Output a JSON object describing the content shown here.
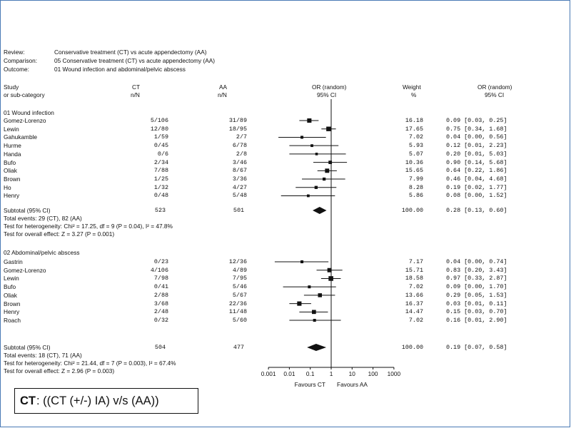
{
  "header": {
    "review_label": "Review:",
    "review_value": "Conservative treatment (CT) vs acute appendectomy (AA)",
    "comparison_label": "Comparison:",
    "comparison_value": "05 Conservative treatment (CT) vs acute appendectomy (AA)",
    "outcome_label": "Outcome:",
    "outcome_value": "01 Wound infection and abdominal/pelvic abscess"
  },
  "columns": {
    "study": "Study",
    "study2": "or sub-category",
    "ct": "CT",
    "ct2": "n/N",
    "aa": "AA",
    "aa2": "n/N",
    "or": "OR (random)",
    "or2": "95% CI",
    "weight": "Weight",
    "weight2": "%",
    "or_right": "OR (random)",
    "or_right2": "95% CI"
  },
  "chart_data": {
    "type": "forest",
    "x_scale": "log",
    "xlim": [
      0.001,
      1000
    ],
    "ticks": [
      "0.001",
      "0.01",
      "0.1",
      "1",
      "10",
      "100",
      "1000"
    ],
    "favours_left": "Favours CT",
    "favours_right": "Favours AA",
    "groups": [
      {
        "title": "01 Wound infection",
        "studies": [
          {
            "name": "Gomez-Lorenzo",
            "ct": "5/106",
            "aa": "31/89",
            "weight": "16.18",
            "ci_text": "0.09 [0.03, 0.25]",
            "or": 0.09,
            "lo": 0.03,
            "hi": 0.25
          },
          {
            "name": "Lewin",
            "ct": "12/80",
            "aa": "18/95",
            "weight": "17.65",
            "ci_text": "0.75 [0.34, 1.68]",
            "or": 0.75,
            "lo": 0.34,
            "hi": 1.68
          },
          {
            "name": "Gahukamble",
            "ct": "1/59",
            "aa": "2/7",
            "weight": "7.02",
            "ci_text": "0.04 [0.00, 0.56]",
            "or": 0.04,
            "lo": 0.003,
            "hi": 0.56
          },
          {
            "name": "Hurme",
            "ct": "0/45",
            "aa": "6/78",
            "weight": "5.93",
            "ci_text": "0.12 [0.01, 2.23]",
            "or": 0.12,
            "lo": 0.01,
            "hi": 2.23
          },
          {
            "name": "Handa",
            "ct": "0/6",
            "aa": "2/8",
            "weight": "5.07",
            "ci_text": "0.20 [0.01, 5.03]",
            "or": 0.2,
            "lo": 0.01,
            "hi": 5.03
          },
          {
            "name": "Bufo",
            "ct": "2/34",
            "aa": "3/46",
            "weight": "10.36",
            "ci_text": "0.90 [0.14, 5.68]",
            "or": 0.9,
            "lo": 0.14,
            "hi": 5.68
          },
          {
            "name": "Oliak",
            "ct": "7/88",
            "aa": "8/67",
            "weight": "15.65",
            "ci_text": "0.64 [0.22, 1.86]",
            "or": 0.64,
            "lo": 0.22,
            "hi": 1.86
          },
          {
            "name": "Brown",
            "ct": "1/25",
            "aa": "3/36",
            "weight": "7.99",
            "ci_text": "0.46 [0.04, 4.68]",
            "or": 0.46,
            "lo": 0.04,
            "hi": 4.68
          },
          {
            "name": "Ho",
            "ct": "1/32",
            "aa": "4/27",
            "weight": "8.28",
            "ci_text": "0.19 [0.02, 1.77]",
            "or": 0.19,
            "lo": 0.02,
            "hi": 1.77
          },
          {
            "name": "Henry",
            "ct": "0/48",
            "aa": "5/48",
            "weight": "5.86",
            "ci_text": "0.08 [0.00, 1.52]",
            "or": 0.08,
            "lo": 0.004,
            "hi": 1.52
          }
        ],
        "subtotal": {
          "name": "Subtotal (95% CI)",
          "ct": "523",
          "aa": "501",
          "weight": "100.00",
          "ci_text": "0.28 [0.13, 0.60]",
          "or": 0.28,
          "lo": 0.13,
          "hi": 0.6
        },
        "total_events": "Total events: 29 (CT), 82 (AA)",
        "heterogeneity": "Test for heterogeneity: Chi² = 17.25, df = 9 (P = 0.04), I² = 47.8%",
        "overall": "Test for overall effect: Z = 3.27 (P = 0.001)"
      },
      {
        "title": "02 Abdominal/pelvic abscess",
        "studies": [
          {
            "name": "Gastrin",
            "ct": "0/23",
            "aa": "12/36",
            "weight": "7.17",
            "ci_text": "0.04 [0.00, 0.74]",
            "or": 0.04,
            "lo": 0.002,
            "hi": 0.74
          },
          {
            "name": "Gomez-Lorenzo",
            "ct": "4/106",
            "aa": "4/89",
            "weight": "15.71",
            "ci_text": "0.83 [0.20, 3.43]",
            "or": 0.83,
            "lo": 0.2,
            "hi": 3.43
          },
          {
            "name": "Lewin",
            "ct": "7/98",
            "aa": "7/95",
            "weight": "18.58",
            "ci_text": "0.97 [0.33, 2.87]",
            "or": 0.97,
            "lo": 0.33,
            "hi": 2.87
          },
          {
            "name": "Bufo",
            "ct": "0/41",
            "aa": "5/46",
            "weight": "7.02",
            "ci_text": "0.09 [0.00, 1.70]",
            "or": 0.09,
            "lo": 0.005,
            "hi": 1.7
          },
          {
            "name": "Oliak",
            "ct": "2/88",
            "aa": "5/67",
            "weight": "13.66",
            "ci_text": "0.29 [0.05, 1.53]",
            "or": 0.29,
            "lo": 0.05,
            "hi": 1.53
          },
          {
            "name": "Brown",
            "ct": "3/68",
            "aa": "22/36",
            "weight": "16.37",
            "ci_text": "0.03 [0.01, 0.11]",
            "or": 0.03,
            "lo": 0.01,
            "hi": 0.11
          },
          {
            "name": "Henry",
            "ct": "2/48",
            "aa": "11/48",
            "weight": "14.47",
            "ci_text": "0.15 [0.03, 0.70]",
            "or": 0.15,
            "lo": 0.03,
            "hi": 0.7
          },
          {
            "name": "Roach",
            "ct": "0/32",
            "aa": "5/60",
            "weight": "7.02",
            "ci_text": "0.16 [0.01, 2.90]",
            "or": 0.16,
            "lo": 0.01,
            "hi": 2.9
          }
        ],
        "subtotal": {
          "name": "Subtotal (95% CI)",
          "ct": "504",
          "aa": "477",
          "weight": "100.00",
          "ci_text": "0.19 [0.07, 0.58]",
          "or": 0.19,
          "lo": 0.07,
          "hi": 0.58
        },
        "total_events": "Total events: 18 (CT), 71 (AA)",
        "heterogeneity": "Test for heterogeneity: Chi² = 21.44, df = 7 (P = 0.003), I² = 67.4%",
        "overall": "Test for overall effect: Z = 2.96 (P = 0.003)"
      }
    ]
  },
  "footnote": {
    "bold": "CT",
    "rest": ": ((CT (+/-) IA)  v/s (AA))"
  }
}
